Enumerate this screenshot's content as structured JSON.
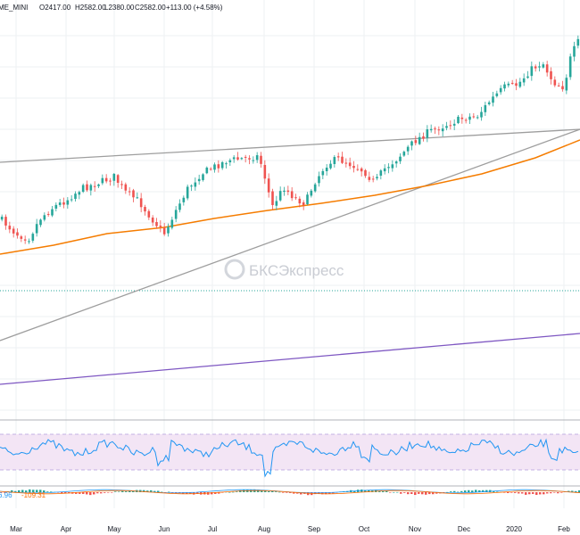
{
  "chart_data": {
    "type": "candlestick",
    "symbol": "ME_MINI",
    "ohlc_legend": {
      "open": "O2417.00",
      "high": "H2582.00",
      "low": "L2380.00",
      "close": "C2582.00",
      "change": "+113.00 (+4.58%)"
    },
    "x_axis_labels": [
      "Mar",
      "Apr",
      "May",
      "Jun",
      "Jul",
      "Aug",
      "Sep",
      "Oct",
      "Nov",
      "Dec",
      "2020",
      "Feb"
    ],
    "watermark": "БКСЭкспресс",
    "macd_values": [
      "6.96",
      "-109.31"
    ],
    "colors": {
      "up": "#26a69a",
      "down": "#ef5350",
      "moving_average": "#f57c00",
      "trendline": "#9e9e9e",
      "purple_line": "#7e57c2",
      "rsi": "#2196f3",
      "rsi_band": "#f3e5f5",
      "macd_up": "#26a69a",
      "macd_down": "#ef5350",
      "macd_label": "#2196f3",
      "macd_label_2": "#ff6d00"
    },
    "grid": true
  }
}
